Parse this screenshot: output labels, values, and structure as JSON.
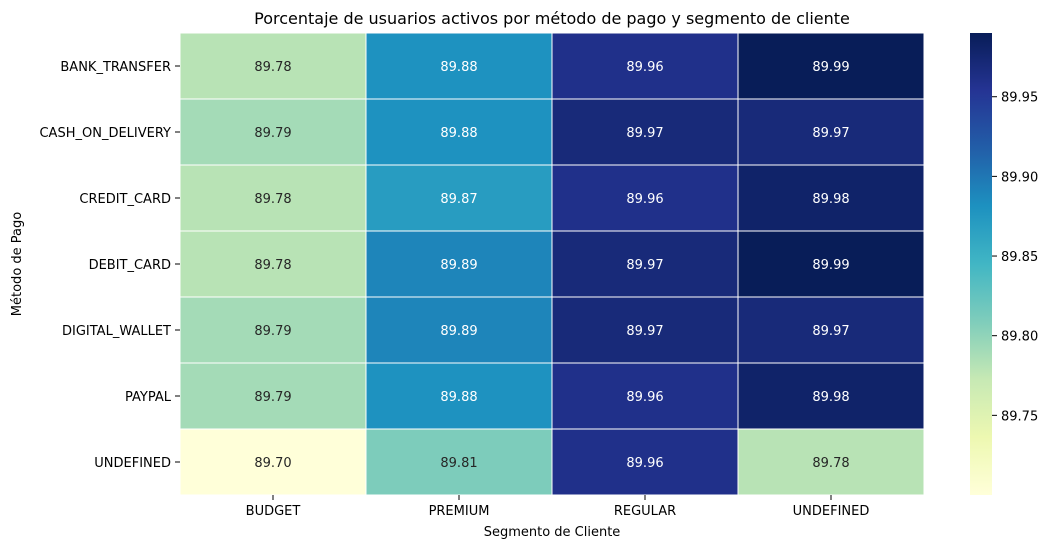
{
  "chart_data": {
    "type": "heatmap",
    "title": "Porcentaje de usuarios activos por método de pago y segmento de cliente",
    "xlabel": "Segmento de Cliente",
    "ylabel": "Método de Pago",
    "x_categories": [
      "BUDGET",
      "PREMIUM",
      "REGULAR",
      "UNDEFINED"
    ],
    "y_categories": [
      "BANK_TRANSFER",
      "CASH_ON_DELIVERY",
      "CREDIT_CARD",
      "DEBIT_CARD",
      "DIGITAL_WALLET",
      "PAYPAL",
      "UNDEFINED"
    ],
    "values": [
      [
        89.78,
        89.88,
        89.96,
        89.99
      ],
      [
        89.79,
        89.88,
        89.97,
        89.97
      ],
      [
        89.78,
        89.87,
        89.96,
        89.98
      ],
      [
        89.78,
        89.89,
        89.97,
        89.99
      ],
      [
        89.79,
        89.89,
        89.97,
        89.97
      ],
      [
        89.79,
        89.88,
        89.96,
        89.98
      ],
      [
        89.7,
        89.81,
        89.96,
        89.78
      ]
    ],
    "colormap": "YlGnBu",
    "colorbar": {
      "range": [
        89.7,
        89.99
      ],
      "ticks": [
        "89.75",
        "89.80",
        "89.85",
        "89.90",
        "89.95"
      ]
    },
    "annotations": "on"
  }
}
